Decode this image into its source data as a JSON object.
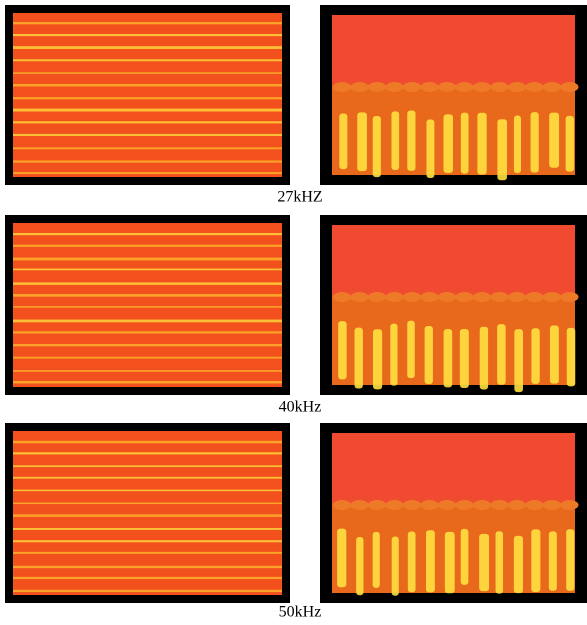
{
  "panels": [
    {
      "label": "27kHZ"
    },
    {
      "label": "40kHz"
    },
    {
      "label": "50kHz"
    }
  ]
}
